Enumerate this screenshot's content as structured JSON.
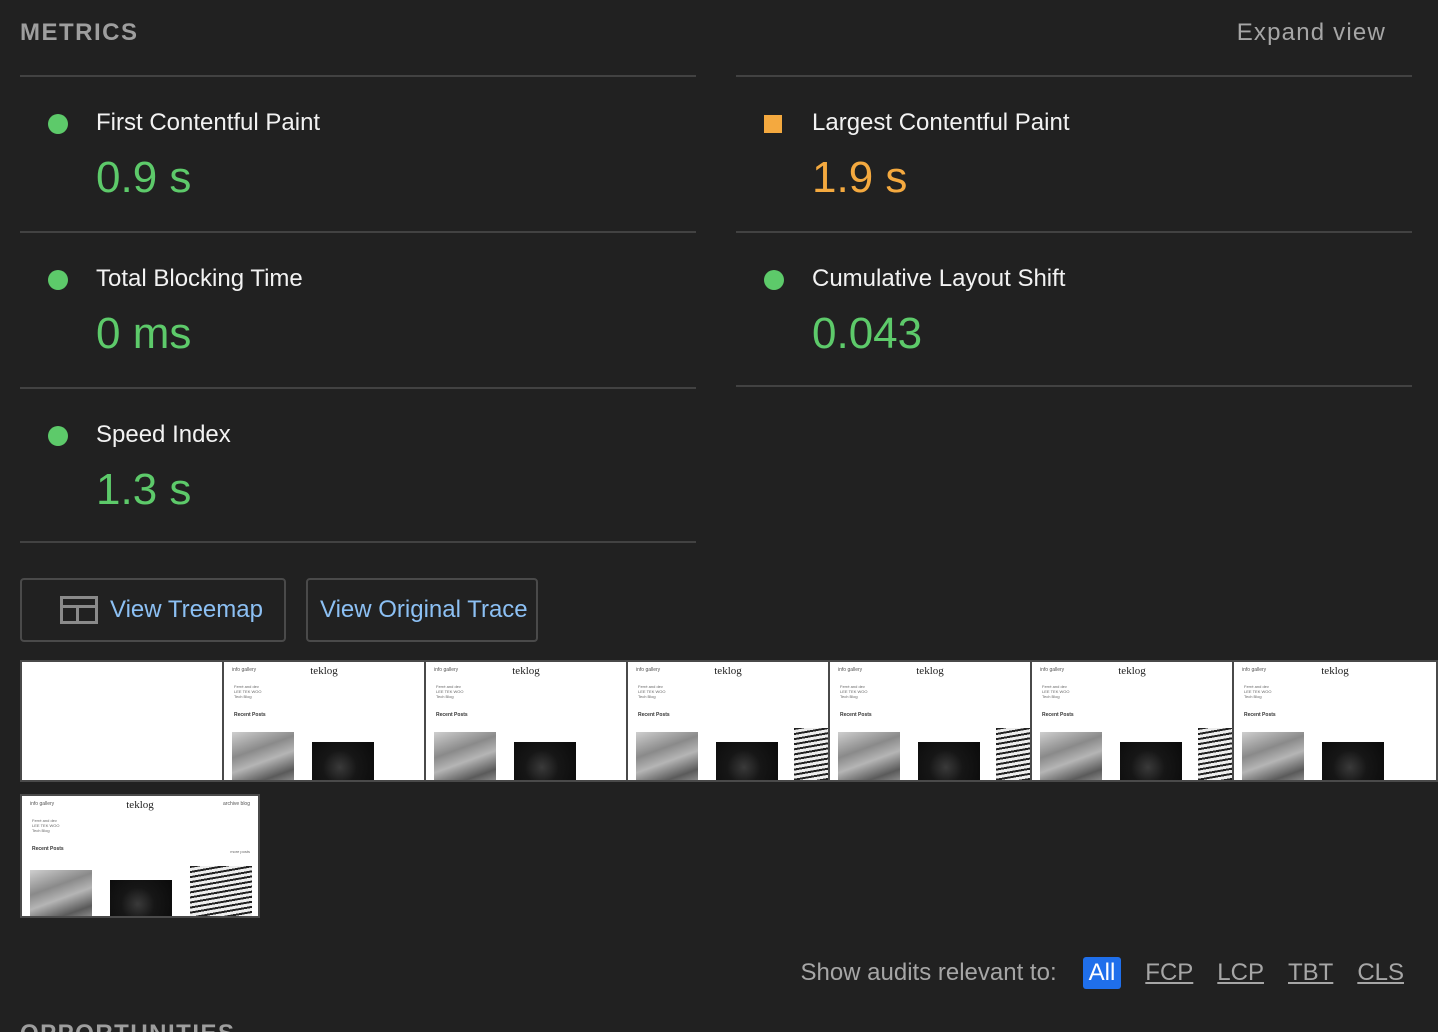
{
  "header": {
    "title": "METRICS",
    "expand_label": "Expand view"
  },
  "metrics": [
    {
      "label": "First Contentful Paint",
      "value": "0.9 s",
      "status": "pass",
      "color": "#5dca6a"
    },
    {
      "label": "Largest Contentful Paint",
      "value": "1.9 s",
      "status": "average",
      "color": "#f4a93f"
    },
    {
      "label": "Total Blocking Time",
      "value": "0 ms",
      "status": "pass",
      "color": "#5dca6a"
    },
    {
      "label": "Cumulative Layout Shift",
      "value": "0.043",
      "status": "pass",
      "color": "#5dca6a"
    },
    {
      "label": "Speed Index",
      "value": "1.3 s",
      "status": "pass",
      "color": "#5dca6a"
    }
  ],
  "buttons": {
    "treemap_label": "View Treemap",
    "trace_label": "View Original Trace"
  },
  "filmstrip": {
    "brand": "teklog",
    "nav_left": "info  gallery",
    "nav_right": "archive  blog",
    "intro_lines": [
      "Ferré and dev",
      "LEE TEK WOO",
      "Tech Blog"
    ],
    "recent_label": "Recent Posts",
    "more_label": "more posts"
  },
  "filters": {
    "label": "Show audits relevant to:",
    "chips": [
      "All",
      "FCP",
      "LCP",
      "TBT",
      "CLS"
    ],
    "active": "All"
  },
  "next_section": {
    "title": "OPPORTUNITIES"
  },
  "colors": {
    "background": "#212121",
    "pass": "#5dca6a",
    "average": "#f4a93f",
    "link": "#8cc0f4",
    "accent": "#1f6feb"
  }
}
